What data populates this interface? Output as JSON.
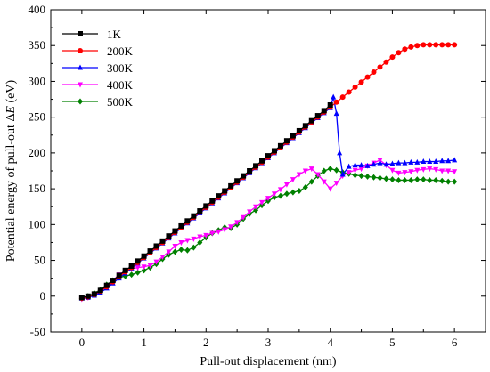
{
  "chart_data": {
    "type": "line",
    "xlabel": "Pull-out displacement (nm)",
    "ylabel_prefix": "Potential energy of pull-out Δ",
    "ylabel_var": "E",
    "ylabel_suffix": " (eV)",
    "xlim": [
      -0.5,
      6.5
    ],
    "ylim": [
      -50,
      400
    ],
    "xticks": [
      0,
      1,
      2,
      3,
      4,
      5,
      6
    ],
    "yticks": [
      -50,
      0,
      50,
      100,
      150,
      200,
      250,
      300,
      350,
      400
    ],
    "legend_position": "top-left",
    "grid": false,
    "series": [
      {
        "name": "1K",
        "color": "#000000",
        "marker": "square",
        "x": [
          0,
          0.1,
          0.2,
          0.3,
          0.4,
          0.5,
          0.6,
          0.7,
          0.8,
          0.9,
          1.0,
          1.1,
          1.2,
          1.3,
          1.4,
          1.5,
          1.6,
          1.7,
          1.8,
          1.9,
          2.0,
          2.1,
          2.2,
          2.3,
          2.4,
          2.5,
          2.6,
          2.7,
          2.8,
          2.9,
          3.0,
          3.1,
          3.2,
          3.3,
          3.4,
          3.5,
          3.6,
          3.7,
          3.8,
          3.9,
          4.0
        ],
        "y": [
          -2,
          0,
          3,
          8,
          15,
          22,
          29,
          36,
          42,
          49,
          56,
          63,
          70,
          77,
          84,
          91,
          98,
          105,
          112,
          119,
          126,
          133,
          140,
          147,
          154,
          161,
          168,
          175,
          182,
          189,
          196,
          203,
          210,
          217,
          224,
          231,
          238,
          245,
          252,
          259,
          267
        ]
      },
      {
        "name": "200K",
        "color": "#ff0000",
        "marker": "circle",
        "x": [
          0,
          0.1,
          0.2,
          0.3,
          0.4,
          0.5,
          0.6,
          0.7,
          0.8,
          0.9,
          1.0,
          1.1,
          1.2,
          1.3,
          1.4,
          1.5,
          1.6,
          1.7,
          1.8,
          1.9,
          2.0,
          2.1,
          2.2,
          2.3,
          2.4,
          2.5,
          2.6,
          2.7,
          2.8,
          2.9,
          3.0,
          3.1,
          3.2,
          3.3,
          3.4,
          3.5,
          3.6,
          3.7,
          3.8,
          3.9,
          4.0,
          4.1,
          4.2,
          4.3,
          4.4,
          4.5,
          4.6,
          4.7,
          4.8,
          4.9,
          5.0,
          5.1,
          5.2,
          5.3,
          5.4,
          5.5,
          5.6,
          5.7,
          5.8,
          5.9,
          6.0
        ],
        "y": [
          -3,
          -1,
          2,
          7,
          13,
          20,
          27,
          34,
          40,
          47,
          54,
          61,
          68,
          75,
          82,
          89,
          96,
          103,
          110,
          117,
          124,
          131,
          138,
          145,
          152,
          159,
          166,
          173,
          180,
          187,
          194,
          201,
          208,
          215,
          222,
          229,
          236,
          243,
          250,
          257,
          264,
          271,
          278,
          285,
          292,
          299,
          306,
          313,
          320,
          327,
          334,
          340,
          345,
          348,
          350,
          351,
          351,
          351,
          351,
          351,
          351
        ]
      },
      {
        "name": "300K",
        "color": "#0000ff",
        "marker": "triangle-up",
        "x": [
          0,
          0.1,
          0.2,
          0.3,
          0.4,
          0.5,
          0.6,
          0.7,
          0.8,
          0.9,
          1.0,
          1.1,
          1.2,
          1.3,
          1.4,
          1.5,
          1.6,
          1.7,
          1.8,
          1.9,
          2.0,
          2.1,
          2.2,
          2.3,
          2.4,
          2.5,
          2.6,
          2.7,
          2.8,
          2.9,
          3.0,
          3.1,
          3.2,
          3.3,
          3.4,
          3.5,
          3.6,
          3.7,
          3.8,
          3.9,
          4.0,
          4.05,
          4.1,
          4.15,
          4.2,
          4.3,
          4.4,
          4.5,
          4.6,
          4.7,
          4.8,
          4.9,
          5.0,
          5.1,
          5.2,
          5.3,
          5.4,
          5.5,
          5.6,
          5.7,
          5.8,
          5.9,
          6.0
        ],
        "y": [
          -3,
          -2,
          1,
          5,
          11,
          18,
          25,
          32,
          39,
          46,
          53,
          60,
          67,
          74,
          81,
          88,
          95,
          102,
          109,
          116,
          123,
          130,
          137,
          144,
          151,
          158,
          165,
          172,
          179,
          186,
          193,
          200,
          207,
          214,
          221,
          228,
          235,
          242,
          249,
          256,
          263,
          278,
          255,
          200,
          170,
          181,
          183,
          183,
          182,
          184,
          186,
          184,
          185,
          186,
          186,
          187,
          187,
          188,
          188,
          188,
          189,
          189,
          190
        ]
      },
      {
        "name": "400K",
        "color": "#ff00ff",
        "marker": "triangle-down",
        "x": [
          0,
          0.1,
          0.2,
          0.3,
          0.4,
          0.5,
          0.6,
          0.7,
          0.8,
          0.9,
          1.0,
          1.1,
          1.2,
          1.3,
          1.4,
          1.5,
          1.6,
          1.7,
          1.8,
          1.9,
          2.0,
          2.1,
          2.2,
          2.3,
          2.4,
          2.5,
          2.6,
          2.7,
          2.8,
          2.9,
          3.0,
          3.1,
          3.2,
          3.3,
          3.4,
          3.5,
          3.6,
          3.7,
          3.8,
          3.9,
          4.0,
          4.1,
          4.2,
          4.3,
          4.4,
          4.5,
          4.6,
          4.7,
          4.8,
          4.9,
          5.0,
          5.1,
          5.2,
          5.3,
          5.4,
          5.5,
          5.6,
          5.7,
          5.8,
          5.9,
          6.0
        ],
        "y": [
          -4,
          -2,
          2,
          8,
          15,
          22,
          30,
          35,
          38,
          40,
          41,
          43,
          48,
          55,
          62,
          70,
          75,
          78,
          80,
          83,
          85,
          88,
          90,
          93,
          97,
          103,
          110,
          118,
          125,
          131,
          137,
          143,
          149,
          156,
          163,
          170,
          175,
          178,
          170,
          160,
          150,
          158,
          168,
          173,
          176,
          178,
          182,
          186,
          190,
          183,
          176,
          172,
          173,
          174,
          176,
          177,
          178,
          177,
          175,
          175,
          174
        ]
      },
      {
        "name": "500K",
        "color": "#008000",
        "marker": "diamond",
        "x": [
          0,
          0.1,
          0.2,
          0.3,
          0.4,
          0.5,
          0.6,
          0.7,
          0.8,
          0.9,
          1.0,
          1.1,
          1.2,
          1.3,
          1.4,
          1.5,
          1.6,
          1.7,
          1.8,
          1.9,
          2.0,
          2.1,
          2.2,
          2.3,
          2.4,
          2.5,
          2.6,
          2.7,
          2.8,
          2.9,
          3.0,
          3.1,
          3.2,
          3.3,
          3.4,
          3.5,
          3.6,
          3.7,
          3.8,
          3.9,
          4.0,
          4.1,
          4.2,
          4.3,
          4.4,
          4.5,
          4.6,
          4.7,
          4.8,
          4.9,
          5.0,
          5.1,
          5.2,
          5.3,
          5.4,
          5.5,
          5.6,
          5.7,
          5.8,
          5.9,
          6.0
        ],
        "y": [
          -3,
          0,
          4,
          9,
          16,
          22,
          26,
          28,
          30,
          33,
          36,
          40,
          45,
          52,
          58,
          62,
          65,
          64,
          68,
          75,
          82,
          88,
          92,
          96,
          95,
          100,
          108,
          115,
          120,
          127,
          133,
          138,
          140,
          143,
          145,
          147,
          152,
          160,
          168,
          175,
          178,
          176,
          173,
          171,
          169,
          168,
          167,
          166,
          165,
          164,
          163,
          162,
          162,
          162,
          163,
          163,
          162,
          162,
          161,
          160,
          160
        ]
      }
    ]
  }
}
